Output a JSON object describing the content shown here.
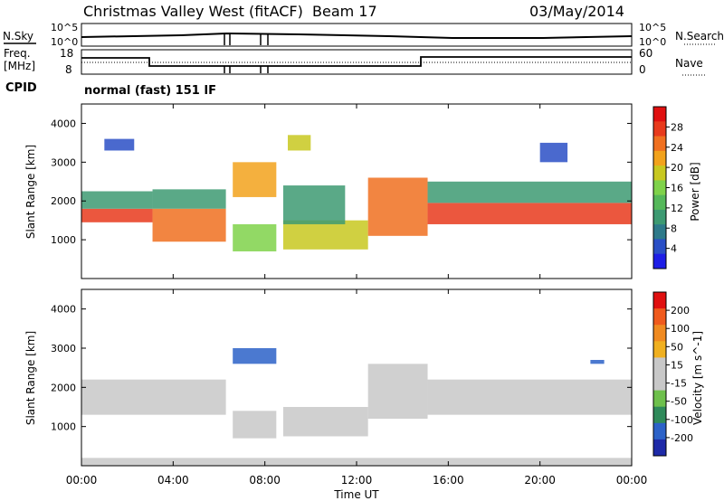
{
  "header": {
    "station": "Christmas Valley West (fitACF)",
    "beam": "Beam 17",
    "date": "03/May/2014"
  },
  "summary": {
    "nsky_label": "N.Sky",
    "nsky_ticks": [
      "10^5",
      "10^0"
    ],
    "nsearch_label": "N.Search",
    "nsearch_ticks": [
      "10^5",
      "10^0"
    ],
    "freq_label": "Freq.",
    "freq_unit": "[MHz]",
    "freq_ticks": [
      "18",
      "8"
    ],
    "nave_label": "Nave",
    "nave_ticks": [
      "60",
      "0"
    ],
    "cpid_label": "CPID",
    "cpid_text": "normal (fast) 151 IF"
  },
  "x_axis": {
    "label": "Time UT",
    "ticks": [
      "00:00",
      "04:00",
      "08:00",
      "12:00",
      "16:00",
      "20:00",
      "00:00"
    ]
  },
  "colors": {
    "power": [
      "#1e1ee6",
      "#2a4fc6",
      "#2e7a8a",
      "#3d9a72",
      "#55b85a",
      "#7fd24a",
      "#c8c820",
      "#f2a21c",
      "#f07020",
      "#e83a1c",
      "#e01010"
    ],
    "velocity": [
      "#1e2aa8",
      "#2c62c8",
      "#2f8a5a",
      "#6ec04c",
      "#c8c8c8",
      "#c8c8c8",
      "#f0b020",
      "#f08a20",
      "#f05a1c",
      "#e01010"
    ]
  },
  "chart_data": [
    {
      "type": "heatmap",
      "title": "",
      "ylabel": "Slant Range [km]",
      "xlabel": "",
      "x_range": [
        "00:00",
        "24:00"
      ],
      "ylim": [
        0,
        4500
      ],
      "y_ticks": [
        1000,
        2000,
        3000,
        4000
      ],
      "colorbar": {
        "label": "Power [dB]",
        "ticks": [
          "28",
          "24",
          "20",
          "16",
          "12",
          "8",
          "4"
        ],
        "range": [
          0,
          30
        ]
      },
      "bands": [
        {
          "t0": 0.0,
          "t1": 3.1,
          "r0": 1450,
          "r1": 1800,
          "value": 27
        },
        {
          "t0": 0.0,
          "t1": 3.1,
          "r0": 1800,
          "r1": 2250,
          "value": 9
        },
        {
          "t0": 3.1,
          "t1": 6.3,
          "r0": 950,
          "r1": 1800,
          "value": 24
        },
        {
          "t0": 3.1,
          "t1": 6.3,
          "r0": 1800,
          "r1": 2300,
          "value": 10
        },
        {
          "t0": 6.6,
          "t1": 8.5,
          "r0": 700,
          "r1": 1400,
          "value": 14
        },
        {
          "t0": 8.8,
          "t1": 12.5,
          "r0": 750,
          "r1": 1500,
          "value": 17
        },
        {
          "t0": 8.8,
          "t1": 11.5,
          "r0": 1400,
          "r1": 2400,
          "value": 9
        },
        {
          "t0": 12.5,
          "t1": 15.1,
          "r0": 1100,
          "r1": 2600,
          "value": 23
        },
        {
          "t0": 15.1,
          "t1": 24.0,
          "r0": 1400,
          "r1": 1950,
          "value": 26
        },
        {
          "t0": 15.1,
          "t1": 24.0,
          "r0": 1950,
          "r1": 2500,
          "value": 9
        },
        {
          "t0": 6.6,
          "t1": 8.5,
          "r0": 2100,
          "r1": 3000,
          "value": 20
        },
        {
          "t0": 9.0,
          "t1": 10.0,
          "r0": 3300,
          "r1": 3700,
          "value": 19
        },
        {
          "t0": 1.0,
          "t1": 2.3,
          "r0": 3300,
          "r1": 3600,
          "value": 5
        },
        {
          "t0": 20.0,
          "t1": 21.2,
          "r0": 3000,
          "r1": 3500,
          "value": 5
        }
      ]
    },
    {
      "type": "heatmap",
      "title": "",
      "ylabel": "Slant Range [km]",
      "xlabel": "Time UT",
      "x_range": [
        "00:00",
        "24:00"
      ],
      "ylim": [
        0,
        4500
      ],
      "y_ticks": [
        1000,
        2000,
        3000,
        4000
      ],
      "colorbar": {
        "label": "Velocity [m s^-1]",
        "ticks": [
          "200",
          "100",
          "50",
          "15",
          "-15",
          "-50",
          "-100",
          "-200"
        ],
        "range": [
          -250,
          250
        ]
      },
      "bands": [
        {
          "t0": 0.0,
          "t1": 6.3,
          "r0": 1300,
          "r1": 2200,
          "value": 0
        },
        {
          "t0": 6.6,
          "t1": 8.5,
          "r0": 700,
          "r1": 1400,
          "value": -40
        },
        {
          "t0": 8.8,
          "t1": 12.5,
          "r0": 750,
          "r1": 1500,
          "value": -45
        },
        {
          "t0": 12.5,
          "t1": 15.1,
          "r0": 1200,
          "r1": 2600,
          "value": 30
        },
        {
          "t0": 15.1,
          "t1": 24.0,
          "r0": 1300,
          "r1": 2200,
          "value": 0
        },
        {
          "t0": 6.6,
          "t1": 8.5,
          "r0": 2600,
          "r1": 3000,
          "value": -200
        },
        {
          "t0": 22.2,
          "t1": 22.8,
          "r0": 2600,
          "r1": 2700,
          "value": -200
        },
        {
          "t0": 0.0,
          "t1": 24.0,
          "r0": 0,
          "r1": 200,
          "value": 40
        }
      ]
    }
  ]
}
